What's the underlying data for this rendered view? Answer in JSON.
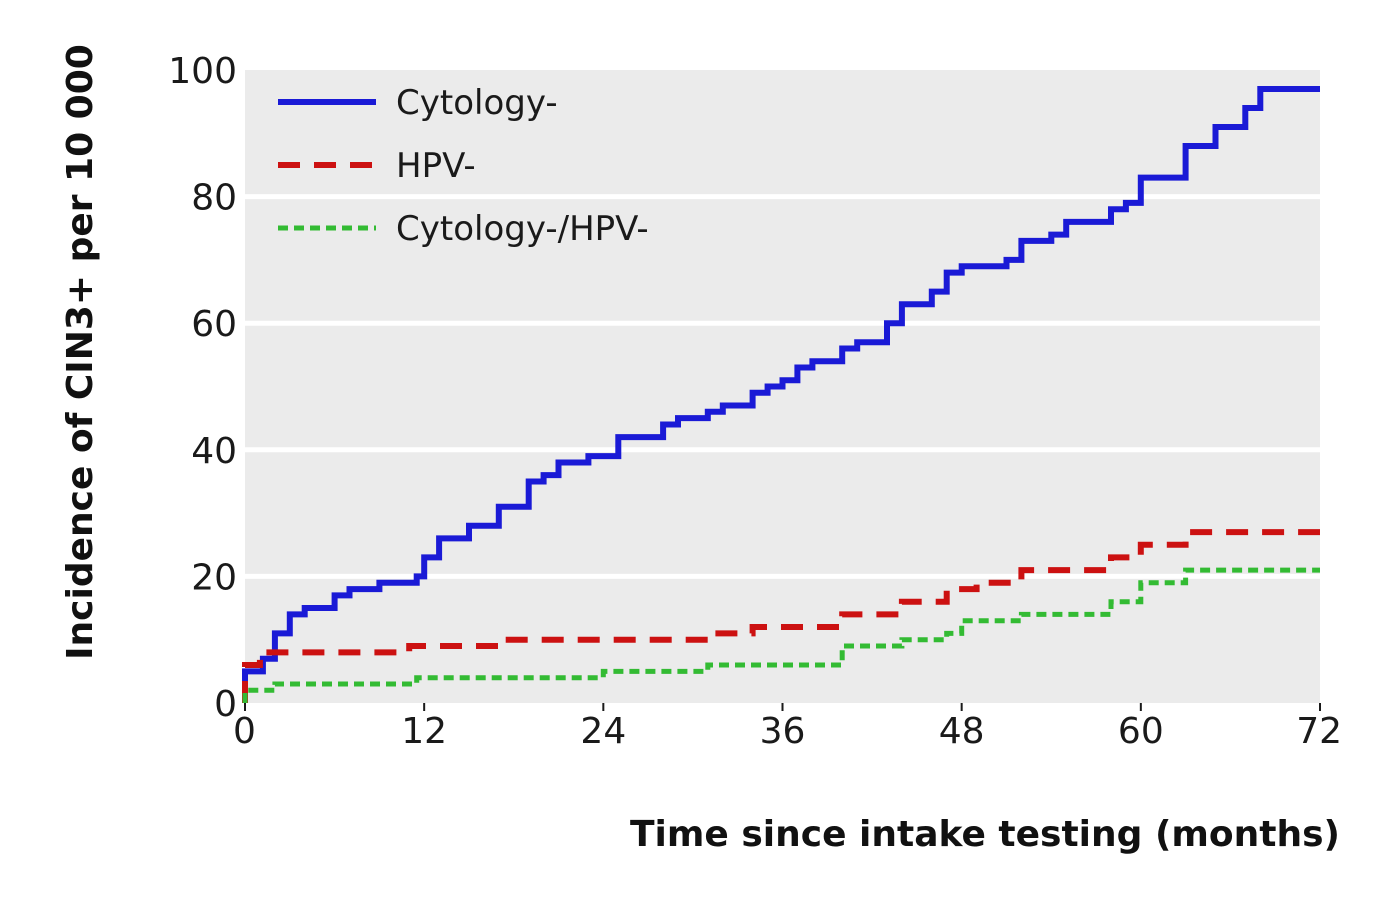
{
  "chart_data": {
    "type": "line",
    "step": true,
    "xlabel": "Time since intake testing (months)",
    "ylabel": "Incidence of CIN3+ per 10 000",
    "xlim": [
      0,
      72
    ],
    "ylim": [
      0,
      100
    ],
    "xticks": [
      0,
      12,
      24,
      36,
      48,
      60,
      72
    ],
    "yticks": [
      0,
      20,
      40,
      60,
      80,
      100
    ],
    "grid": true,
    "legend_position": "top-left",
    "series": [
      {
        "name": "Cytology-",
        "color": "#1a1ad6",
        "style": "solid",
        "points": [
          [
            0,
            0
          ],
          [
            0,
            5
          ],
          [
            1.2,
            5
          ],
          [
            1.2,
            7
          ],
          [
            2,
            7
          ],
          [
            2,
            11
          ],
          [
            3,
            11
          ],
          [
            3,
            14
          ],
          [
            4,
            14
          ],
          [
            4,
            15
          ],
          [
            6,
            15
          ],
          [
            6,
            17
          ],
          [
            7,
            17
          ],
          [
            7,
            18
          ],
          [
            9,
            18
          ],
          [
            9,
            19
          ],
          [
            11.5,
            19
          ],
          [
            11.5,
            20
          ],
          [
            12,
            20
          ],
          [
            12,
            23
          ],
          [
            13,
            23
          ],
          [
            13,
            26
          ],
          [
            15,
            26
          ],
          [
            15,
            28
          ],
          [
            17,
            28
          ],
          [
            17,
            31
          ],
          [
            19,
            31
          ],
          [
            19,
            35
          ],
          [
            20,
            35
          ],
          [
            20,
            36
          ],
          [
            21,
            36
          ],
          [
            21,
            38
          ],
          [
            23,
            38
          ],
          [
            23,
            39
          ],
          [
            25,
            39
          ],
          [
            25,
            42
          ],
          [
            28,
            42
          ],
          [
            28,
            44
          ],
          [
            29,
            44
          ],
          [
            29,
            45
          ],
          [
            31,
            45
          ],
          [
            31,
            46
          ],
          [
            32,
            46
          ],
          [
            32,
            47
          ],
          [
            34,
            47
          ],
          [
            34,
            49
          ],
          [
            35,
            49
          ],
          [
            35,
            50
          ],
          [
            36,
            50
          ],
          [
            36,
            51
          ],
          [
            37,
            51
          ],
          [
            37,
            53
          ],
          [
            38,
            53
          ],
          [
            38,
            54
          ],
          [
            40,
            54
          ],
          [
            40,
            56
          ],
          [
            41,
            56
          ],
          [
            41,
            57
          ],
          [
            43,
            57
          ],
          [
            43,
            60
          ],
          [
            44,
            60
          ],
          [
            44,
            63
          ],
          [
            46,
            63
          ],
          [
            46,
            65
          ],
          [
            47,
            65
          ],
          [
            47,
            68
          ],
          [
            48,
            68
          ],
          [
            48,
            69
          ],
          [
            51,
            69
          ],
          [
            51,
            70
          ],
          [
            52,
            70
          ],
          [
            52,
            73
          ],
          [
            54,
            73
          ],
          [
            54,
            74
          ],
          [
            55,
            74
          ],
          [
            55,
            76
          ],
          [
            58,
            76
          ],
          [
            58,
            78
          ],
          [
            59,
            78
          ],
          [
            59,
            79
          ],
          [
            60,
            79
          ],
          [
            60,
            83
          ],
          [
            63,
            83
          ],
          [
            63,
            88
          ],
          [
            65,
            88
          ],
          [
            65,
            91
          ],
          [
            67,
            91
          ],
          [
            67,
            94
          ],
          [
            68,
            94
          ],
          [
            68,
            97
          ],
          [
            72,
            97
          ]
        ]
      },
      {
        "name": "HPV-",
        "color": "#cc1111",
        "style": "dashed",
        "points": [
          [
            0,
            0
          ],
          [
            0,
            6
          ],
          [
            1,
            6
          ],
          [
            1,
            8
          ],
          [
            11,
            8
          ],
          [
            11,
            9
          ],
          [
            17,
            9
          ],
          [
            17,
            10
          ],
          [
            31,
            10
          ],
          [
            31,
            11
          ],
          [
            34,
            11
          ],
          [
            34,
            12
          ],
          [
            40,
            12
          ],
          [
            40,
            14
          ],
          [
            44,
            14
          ],
          [
            44,
            16
          ],
          [
            47,
            16
          ],
          [
            47,
            18
          ],
          [
            49,
            18
          ],
          [
            49,
            19
          ],
          [
            52,
            19
          ],
          [
            52,
            21
          ],
          [
            58,
            21
          ],
          [
            58,
            23
          ],
          [
            60,
            23
          ],
          [
            60,
            25
          ],
          [
            63,
            25
          ],
          [
            63,
            27
          ],
          [
            72,
            27
          ]
        ]
      },
      {
        "name": "Cytology-/HPV-",
        "color": "#33bb33",
        "style": "dotted",
        "points": [
          [
            0,
            0
          ],
          [
            0,
            2
          ],
          [
            2,
            2
          ],
          [
            2,
            3
          ],
          [
            11.5,
            3
          ],
          [
            11.5,
            4
          ],
          [
            24,
            4
          ],
          [
            24,
            5
          ],
          [
            31,
            5
          ],
          [
            31,
            6
          ],
          [
            40,
            6
          ],
          [
            40,
            9
          ],
          [
            44,
            9
          ],
          [
            44,
            10
          ],
          [
            47,
            10
          ],
          [
            47,
            11
          ],
          [
            48,
            11
          ],
          [
            48,
            13
          ],
          [
            52,
            13
          ],
          [
            52,
            14
          ],
          [
            58,
            14
          ],
          [
            58,
            16
          ],
          [
            60,
            16
          ],
          [
            60,
            19
          ],
          [
            63,
            19
          ],
          [
            63,
            21
          ],
          [
            72,
            21
          ]
        ]
      }
    ]
  },
  "colors": {
    "plot_background": "#ebebeb",
    "gridline": "#ffffff"
  }
}
